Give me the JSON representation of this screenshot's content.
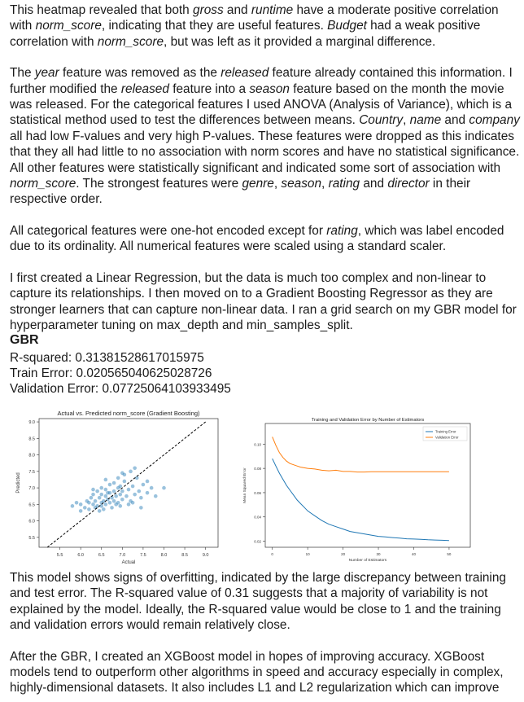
{
  "paragraphs": [
    [
      {
        "t": "This heatmap revealed that both "
      },
      {
        "t": "gross",
        "i": true
      },
      {
        "t": " and "
      },
      {
        "t": "runtime",
        "i": true
      },
      {
        "t": " have a moderate positive correlation with "
      },
      {
        "t": "norm_score",
        "i": true
      },
      {
        "t": ", indicating that they are useful features. "
      },
      {
        "t": "Budget",
        "i": true
      },
      {
        "t": " had a weak positive correlation with "
      },
      {
        "t": "norm_score",
        "i": true
      },
      {
        "t": ", but was left as it provided a marginal difference."
      }
    ],
    [
      {
        "t": "The "
      },
      {
        "t": "year",
        "i": true
      },
      {
        "t": " feature was removed as the "
      },
      {
        "t": "released",
        "i": true
      },
      {
        "t": " feature already contained this information. I further modified the "
      },
      {
        "t": "released",
        "i": true
      },
      {
        "t": " feature into a "
      },
      {
        "t": "season",
        "i": true
      },
      {
        "t": " feature based on the month the movie was released. For the categorical features I used ANOVA (Analysis of Variance), which is a statistical method used to test the differences between means. "
      },
      {
        "t": "Country",
        "i": true
      },
      {
        "t": ", "
      },
      {
        "t": "name",
        "i": true
      },
      {
        "t": " and "
      },
      {
        "t": "company",
        "i": true
      },
      {
        "t": " all had low F-values and very high P-values. These features were dropped as this indicates that they all had little to no association with norm scores and have no statistical significance. All other features were statistically significant and indicated some sort of association with "
      },
      {
        "t": "norm_score",
        "i": true
      },
      {
        "t": ". The strongest features were "
      },
      {
        "t": "genre",
        "i": true
      },
      {
        "t": ", "
      },
      {
        "t": "season",
        "i": true
      },
      {
        "t": ", "
      },
      {
        "t": "rating",
        "i": true
      },
      {
        "t": " and "
      },
      {
        "t": "director",
        "i": true
      },
      {
        "t": " in their respective order."
      }
    ],
    [
      {
        "t": "All categorical features were one-hot encoded except for "
      },
      {
        "t": "rating",
        "i": true
      },
      {
        "t": ", which was label encoded due to its ordinality. All numerical features were scaled using a standard scaler."
      }
    ],
    [
      {
        "t": "I first created a Linear Regression, but the data is much too complex and non-linear to capture its relationships. I then moved on to a Gradient Boosting Regressor as they are stronger learners that can capture non-linear data. I ran a grid search on my GBR model for hyperparameter tuning on max_depth and min_samples_split."
      }
    ]
  ],
  "gbr": {
    "heading": "GBR",
    "r_squared": "R-squared: 0.31381528617015975",
    "train_error": "Train Error: 0.020565040625028726",
    "validation_error": "Validation Error: 0.07725064103933495"
  },
  "after_paragraphs": [
    "This model shows signs of overfitting, indicated by the large discrepancy between training and test error. The R-squared value of 0.31 suggests that a majority of variability is not explained by the model. Ideally, the R-squared value would be close to 1 and the training and validation errors would remain relatively close.",
    "After the GBR, I created an XGBoost model in hopes of improving accuracy. XGBoost models tend to outperform other algorithms in speed and accuracy especially in complex, highly-dimensional datasets. It also includes L1 and L2 regularization which can improve"
  ],
  "chart_data": [
    {
      "type": "scatter",
      "title": "Actual vs. Predicted norm_score (Gradient Boosting)",
      "xlabel": "Actual",
      "ylabel": "Predicted",
      "xlim": [
        5.0,
        9.3
      ],
      "ylim": [
        5.2,
        9.1
      ],
      "xticks": [
        "5.5",
        "6.0",
        "6.5",
        "7.0",
        "7.5",
        "8.0",
        "8.5",
        "9.0"
      ],
      "yticks": [
        "5.5",
        "6.0",
        "6.5",
        "7.0",
        "7.5",
        "8.0",
        "8.5",
        "9.0"
      ],
      "reference_line": {
        "style": "dashed",
        "color": "#000000",
        "from": [
          5.2,
          5.2
        ],
        "to": [
          9.0,
          9.0
        ]
      },
      "point_color": "#1f77b4",
      "points": [
        [
          5.8,
          6.45
        ],
        [
          6.0,
          6.5
        ],
        [
          6.1,
          6.4
        ],
        [
          6.15,
          6.6
        ],
        [
          6.2,
          6.55
        ],
        [
          6.25,
          6.7
        ],
        [
          6.3,
          6.5
        ],
        [
          6.3,
          6.8
        ],
        [
          6.35,
          6.6
        ],
        [
          6.4,
          6.45
        ],
        [
          6.4,
          6.9
        ],
        [
          6.45,
          6.7
        ],
        [
          6.5,
          6.55
        ],
        [
          6.5,
          6.8
        ],
        [
          6.5,
          7.0
        ],
        [
          6.55,
          6.6
        ],
        [
          6.6,
          6.5
        ],
        [
          6.6,
          6.75
        ],
        [
          6.6,
          6.95
        ],
        [
          6.65,
          6.65
        ],
        [
          6.7,
          6.55
        ],
        [
          6.7,
          6.85
        ],
        [
          6.7,
          7.1
        ],
        [
          6.75,
          6.7
        ],
        [
          6.8,
          6.6
        ],
        [
          6.8,
          6.9
        ],
        [
          6.85,
          6.75
        ],
        [
          6.9,
          6.55
        ],
        [
          6.9,
          7.0
        ],
        [
          6.95,
          6.8
        ],
        [
          7.0,
          6.65
        ],
        [
          7.0,
          6.9
        ],
        [
          7.05,
          7.2
        ],
        [
          7.1,
          6.75
        ],
        [
          7.15,
          6.95
        ],
        [
          7.2,
          6.6
        ],
        [
          7.25,
          7.05
        ],
        [
          7.3,
          6.8
        ],
        [
          7.35,
          7.3
        ],
        [
          7.4,
          6.9
        ],
        [
          7.45,
          6.7
        ],
        [
          7.5,
          7.1
        ],
        [
          7.6,
          6.85
        ],
        [
          7.7,
          7.0
        ],
        [
          6.2,
          6.35
        ],
        [
          6.35,
          6.4
        ],
        [
          6.55,
          6.35
        ],
        [
          6.75,
          6.4
        ],
        [
          6.95,
          6.45
        ],
        [
          7.15,
          6.5
        ],
        [
          7.2,
          7.5
        ],
        [
          7.05,
          7.4
        ],
        [
          6.9,
          7.3
        ],
        [
          7.3,
          7.6
        ],
        [
          7.0,
          7.45
        ],
        [
          7.6,
          7.2
        ],
        [
          8.0,
          7.0
        ],
        [
          6.0,
          6.3
        ],
        [
          5.9,
          6.55
        ],
        [
          6.45,
          6.3
        ],
        [
          6.6,
          7.25
        ],
        [
          6.8,
          7.15
        ],
        [
          7.45,
          6.4
        ],
        [
          7.8,
          6.75
        ],
        [
          6.3,
          6.95
        ],
        [
          6.5,
          6.45
        ],
        [
          6.85,
          6.5
        ],
        [
          7.25,
          6.55
        ],
        [
          6.65,
          6.85
        ],
        [
          6.95,
          7.05
        ]
      ]
    },
    {
      "type": "line",
      "title": "Training and Validation Error by Number of Estimators",
      "xlabel": "Number of Estimators",
      "ylabel": "Mean Squared Error",
      "xlim": [
        -2,
        56
      ],
      "ylim": [
        0.015,
        0.117
      ],
      "xticks": [
        "0",
        "10",
        "20",
        "30",
        "40",
        "50"
      ],
      "yticks": [
        "0.02",
        "0.04",
        "0.06",
        "0.08",
        "0.10"
      ],
      "legend_position": "top-right",
      "series": [
        {
          "name": "Training Error",
          "color": "#1f77b4",
          "x": [
            0,
            1,
            2,
            3,
            4,
            5,
            6,
            7,
            8,
            9,
            10,
            12,
            14,
            16,
            18,
            20,
            22,
            24,
            26,
            28,
            30,
            32,
            34,
            36,
            38,
            40,
            42,
            44,
            46,
            48,
            50
          ],
          "y": [
            0.088,
            0.082,
            0.076,
            0.071,
            0.066,
            0.062,
            0.058,
            0.054,
            0.051,
            0.048,
            0.045,
            0.041,
            0.037,
            0.034,
            0.032,
            0.03,
            0.028,
            0.027,
            0.026,
            0.025,
            0.024,
            0.0235,
            0.023,
            0.0225,
            0.022,
            0.0218,
            0.0215,
            0.0212,
            0.021,
            0.0208,
            0.0206
          ]
        },
        {
          "name": "Validation Error",
          "color": "#ff7f0e",
          "x": [
            0,
            1,
            2,
            3,
            4,
            5,
            6,
            7,
            8,
            9,
            10,
            12,
            14,
            16,
            18,
            20,
            22,
            24,
            26,
            28,
            30,
            32,
            34,
            36,
            38,
            40,
            42,
            44,
            46,
            48,
            50
          ],
          "y": [
            0.106,
            0.099,
            0.093,
            0.089,
            0.086,
            0.084,
            0.083,
            0.082,
            0.081,
            0.0805,
            0.08,
            0.0795,
            0.0785,
            0.078,
            0.0785,
            0.0775,
            0.0775,
            0.077,
            0.077,
            0.0772,
            0.0772,
            0.0772,
            0.0772,
            0.0772,
            0.0772,
            0.0772,
            0.0772,
            0.0772,
            0.0772,
            0.0772,
            0.0772
          ]
        }
      ]
    }
  ]
}
